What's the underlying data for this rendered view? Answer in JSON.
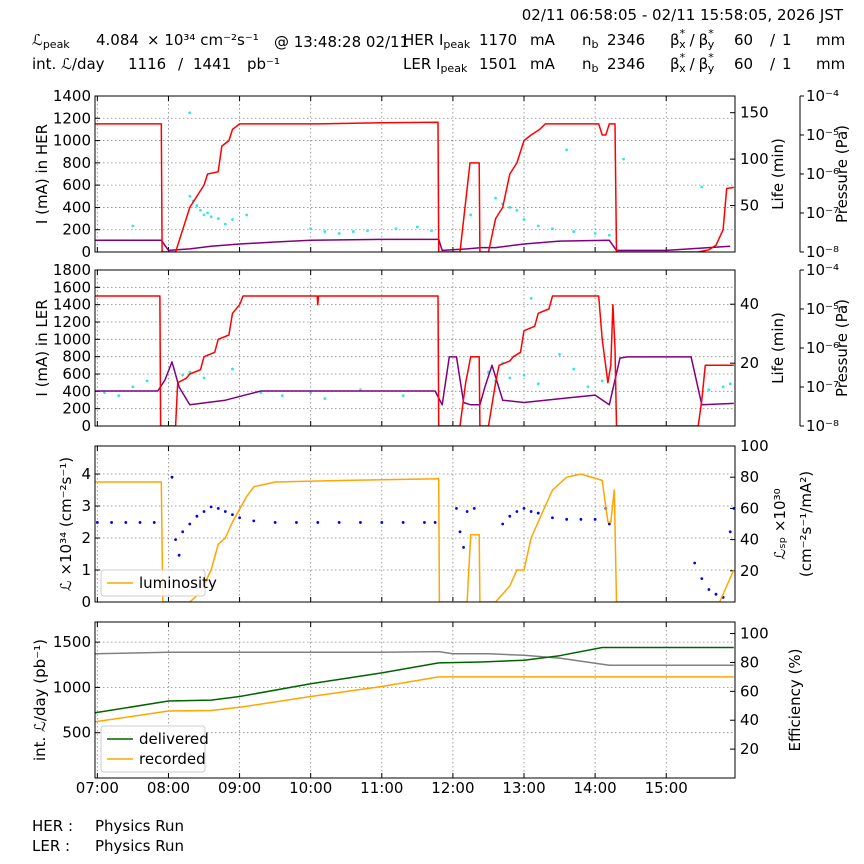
{
  "header": {
    "time_range": "02/11 06:58:05 - 02/11 15:58:05, 2026 JST",
    "lumi_symbol": "ℒ",
    "peak_sub": "peak",
    "peak_lumi": 4.084,
    "lumi_unit": "× 10³⁴ cm⁻²s⁻¹",
    "peak_time": "@ 13:48:28 02/11",
    "int_label": "int. ℒ/day",
    "int_recorded": 1116,
    "int_sep": "/",
    "int_delivered": 1441,
    "int_unit": "pb⁻¹",
    "rings": [
      {
        "label": "HER I",
        "sub": "peak",
        "current": 1170,
        "current_unit": "mA",
        "nb_label": "n",
        "nb_sub": "b",
        "nb": 2346,
        "beta_label": [
          "β",
          "*",
          "x",
          "/",
          "β",
          "*",
          "y"
        ],
        "beta_x": 60,
        "beta_sep": "/",
        "beta_y": 1,
        "beta_unit": "mm"
      },
      {
        "label": "LER I",
        "sub": "peak",
        "current": 1501,
        "current_unit": "mA",
        "nb_label": "n",
        "nb_sub": "b",
        "nb": 2346,
        "beta_label": [
          "β",
          "*",
          "x",
          "/",
          "β",
          "*",
          "y"
        ],
        "beta_x": 60,
        "beta_sep": "/",
        "beta_y": 1,
        "beta_unit": "mm"
      }
    ]
  },
  "footer": [
    {
      "ring": "HER :",
      "mode": "Physics Run"
    },
    {
      "ring": "LER :",
      "mode": "Physics Run"
    }
  ],
  "chart_data": [
    {
      "type": "line",
      "ylabel": "I (mA) in HER",
      "y2label": "Life (min)",
      "y3label": "Pressure (Pa)",
      "grid": true,
      "xlim": [
        6.967,
        15.967
      ],
      "ylim": [
        0,
        1400
      ],
      "yticks": [
        0,
        200,
        400,
        600,
        800,
        1000,
        1200,
        1400
      ],
      "y2lim": [
        0,
        168
      ],
      "y2ticks": [
        50,
        100,
        150
      ],
      "y3lim": [
        1e-08,
        0.0001
      ],
      "y3log": true,
      "y3ticks": [
        {
          "value": 0.0001,
          "label": "10⁻⁴"
        },
        {
          "value": 1e-05,
          "label": "10⁻⁵"
        },
        {
          "value": 1e-06,
          "label": "10⁻⁶"
        },
        {
          "value": 1e-07,
          "label": "10⁻⁷"
        },
        {
          "value": 1e-08,
          "label": "10⁻⁸"
        }
      ],
      "series": [
        {
          "type": "scatter",
          "axis": "y2",
          "color": "#33e6e6",
          "x": [
            8.3,
            8.35,
            8.4,
            8.45,
            8.5,
            8.6,
            8.7,
            8.8,
            8.9,
            8.55,
            9.1,
            10.0,
            10.2,
            10.4,
            10.6,
            10.8,
            11.2,
            11.5,
            11.7,
            12.25,
            12.6,
            12.7,
            12.8,
            12.9,
            13.0,
            13.2,
            13.4,
            13.7,
            14.0,
            14.2,
            13.6,
            8.3,
            7.5,
            15.5,
            14.4
          ],
          "values": [
            60,
            55,
            50,
            45,
            40,
            38,
            36,
            30,
            35,
            42,
            40,
            25,
            22,
            20,
            22,
            23,
            25,
            27,
            23,
            40,
            58,
            52,
            48,
            45,
            35,
            28,
            25,
            22,
            20,
            18,
            110,
            150,
            28,
            70,
            100
          ]
        },
        {
          "axis": "y3",
          "color": "#800080",
          "x": [
            6.97,
            7.9,
            8.0,
            8.3,
            8.6,
            9.0,
            9.5,
            10.0,
            11.0,
            11.8,
            11.85,
            12.2,
            12.4,
            12.6,
            13.0,
            13.5,
            14.2,
            14.3,
            15.0,
            15.9
          ],
          "values": [
            2e-08,
            2e-08,
            1.1e-08,
            1.2e-08,
            1.4e-08,
            1.6e-08,
            1.8e-08,
            2e-08,
            2.1e-08,
            2.1e-08,
            1.1e-08,
            1.2e-08,
            1.3e-08,
            1.3e-08,
            1.6e-08,
            1.9e-08,
            2e-08,
            1.1e-08,
            1.1e-08,
            1.4e-08
          ]
        },
        {
          "color": "#ff0000",
          "x": [
            6.97,
            7.9,
            7.91,
            8.1,
            8.2,
            8.3,
            8.35,
            8.5,
            8.55,
            8.7,
            8.75,
            8.85,
            8.9,
            9.0,
            9.3,
            10.1,
            11.0,
            11.79,
            11.8,
            12.1,
            12.17,
            12.24,
            12.37,
            12.38,
            12.5,
            12.6,
            12.7,
            12.8,
            12.9,
            13.0,
            13.1,
            13.22,
            13.3,
            14.05,
            14.1,
            14.15,
            14.2,
            14.28,
            14.3,
            15.45,
            15.6,
            15.7,
            15.8,
            15.85,
            15.95
          ],
          "values": [
            1150,
            1150,
            0,
            0,
            200,
            400,
            450,
            600,
            700,
            720,
            950,
            1000,
            1100,
            1150,
            1150,
            1150,
            1160,
            1165,
            0,
            0,
            400,
            800,
            800,
            0,
            0,
            300,
            400,
            700,
            800,
            1000,
            1050,
            1100,
            1150,
            1150,
            1050,
            1050,
            1150,
            1150,
            0,
            0,
            20,
            60,
            200,
            570,
            580
          ]
        }
      ]
    },
    {
      "type": "line",
      "ylabel": "I (mA) in LER",
      "y2label": "Life (min)",
      "y3label": "Pressure (Pa)",
      "grid": true,
      "xlim": [
        6.967,
        15.967
      ],
      "ylim": [
        0,
        1800
      ],
      "yticks": [
        0,
        200,
        400,
        600,
        800,
        1000,
        1200,
        1400,
        1600,
        1800
      ],
      "y2lim": [
        -1.3,
        51.6
      ],
      "y2ticks": [
        20,
        40
      ],
      "y3lim": [
        1e-08,
        0.0001
      ],
      "y3log": true,
      "y3ticks": [
        {
          "value": 0.0001,
          "label": "10⁻⁴"
        },
        {
          "value": 1e-05,
          "label": "10⁻⁵"
        },
        {
          "value": 1e-06,
          "label": "10⁻⁶"
        },
        {
          "value": 1e-07,
          "label": "10⁻⁷"
        },
        {
          "value": 1e-08,
          "label": "10⁻⁸"
        }
      ],
      "series": [
        {
          "type": "scatter",
          "axis": "y2",
          "color": "#33e6e6",
          "x": [
            7.1,
            7.3,
            7.5,
            7.7,
            8.2,
            8.3,
            8.5,
            8.9,
            9.3,
            9.6,
            10.0,
            10.2,
            10.7,
            11.3,
            12.5,
            12.6,
            12.7,
            12.8,
            13.0,
            13.2,
            13.5,
            13.7,
            13.9,
            14.1,
            15.6,
            15.8,
            15.9,
            13.1
          ],
          "values": [
            10,
            9,
            12,
            14,
            16,
            17,
            15,
            18,
            10,
            9,
            10,
            8,
            11,
            9,
            17,
            14,
            20,
            15,
            16,
            13,
            23,
            18,
            12,
            14,
            11,
            12,
            13,
            42
          ]
        },
        {
          "axis": "y3",
          "color": "#800080",
          "x": [
            6.97,
            7.85,
            7.95,
            8.05,
            8.15,
            8.3,
            8.8,
            9.3,
            11.75,
            11.85,
            11.95,
            12.05,
            12.15,
            12.25,
            12.38,
            12.45,
            12.55,
            12.7,
            13.0,
            13.5,
            14.0,
            14.2,
            14.35,
            14.45,
            15.35,
            15.5,
            15.95
          ],
          "values": [
            7.9e-08,
            7.9e-08,
            1.5e-07,
            4.4e-07,
            1e-07,
            3.5e-08,
            4.6e-08,
            7.9e-08,
            7.9e-08,
            3.5e-08,
            5.9e-07,
            5.9e-07,
            4e-08,
            3.5e-08,
            3.5e-08,
            1e-07,
            3.6e-07,
            4.6e-08,
            4e-08,
            5e-08,
            6.2e-08,
            3.5e-08,
            5.5e-07,
            5.9e-07,
            5.9e-07,
            3.5e-08,
            3.8e-08
          ]
        },
        {
          "color": "#ff0000",
          "x": [
            6.97,
            7.88,
            7.89,
            8.1,
            8.13,
            8.25,
            8.3,
            8.45,
            8.5,
            8.65,
            8.7,
            8.85,
            8.9,
            9.0,
            9.05,
            10.09,
            10.1,
            10.11,
            11.79,
            11.8,
            12.1,
            12.18,
            12.25,
            12.37,
            12.38,
            12.5,
            12.6,
            12.65,
            12.8,
            12.85,
            12.95,
            13.0,
            13.15,
            13.2,
            13.35,
            13.4,
            14.05,
            14.1,
            14.18,
            14.22,
            14.25,
            14.28,
            14.3,
            15.45,
            15.5,
            15.55,
            15.95
          ],
          "values": [
            1500,
            1500,
            0,
            0,
            500,
            550,
            600,
            650,
            800,
            850,
            1000,
            1050,
            1300,
            1400,
            1500,
            1500,
            1400,
            1500,
            1500,
            0,
            0,
            500,
            800,
            800,
            0,
            0,
            500,
            700,
            750,
            800,
            850,
            1100,
            1150,
            1300,
            1350,
            1500,
            1500,
            1000,
            500,
            700,
            1400,
            900,
            0,
            0,
            300,
            700,
            700
          ]
        }
      ]
    },
    {
      "type": "line",
      "ylabel": "ℒ ×10³⁴ (cm⁻²s⁻¹)",
      "y2label": [
        "ℒₛₚ ×10³⁰",
        "(cm⁻²s⁻¹/mA²)"
      ],
      "grid": true,
      "legend": "lower left",
      "xlim": [
        6.967,
        15.967
      ],
      "ylim": [
        0,
        4.875
      ],
      "yticks": [
        0,
        1,
        2,
        3,
        4
      ],
      "y2lim": [
        0,
        100
      ],
      "y2ticks": [
        20,
        40,
        60,
        80,
        100
      ],
      "series": [
        {
          "type": "scatter",
          "axis": "y2",
          "color": "#0000ff",
          "x": [
            7.0,
            7.2,
            7.4,
            7.6,
            7.8,
            8.05,
            8.1,
            8.15,
            8.2,
            8.3,
            8.4,
            8.5,
            8.6,
            8.7,
            8.8,
            8.9,
            9.0,
            9.2,
            9.5,
            9.8,
            10.1,
            10.4,
            10.7,
            11.0,
            11.3,
            11.6,
            11.75,
            12.05,
            12.1,
            12.15,
            12.2,
            12.3,
            12.7,
            12.8,
            12.9,
            13.0,
            13.1,
            13.2,
            13.4,
            13.6,
            13.8,
            14.0,
            14.15,
            14.2,
            15.4,
            15.5,
            15.6,
            15.7,
            15.8,
            15.9,
            15.95
          ],
          "values": [
            51,
            51,
            51,
            51,
            51,
            80,
            40,
            30,
            45,
            50,
            55,
            58,
            61,
            60,
            58,
            56,
            54,
            52,
            51,
            51,
            51,
            51,
            51,
            51,
            51,
            51,
            51,
            60,
            45,
            35,
            58,
            60,
            50,
            55,
            58,
            60,
            58,
            57,
            54,
            53,
            53,
            53,
            60,
            50,
            25,
            15,
            8,
            5,
            3,
            45,
            60
          ]
        },
        {
          "name": "luminosity",
          "color": "#ffa500",
          "x": [
            6.97,
            7.9,
            7.92,
            8.3,
            8.45,
            8.6,
            8.7,
            8.8,
            8.9,
            9.0,
            9.1,
            9.2,
            9.5,
            10.5,
            11.8,
            11.81,
            12.2,
            12.25,
            12.37,
            12.38,
            12.6,
            12.8,
            12.9,
            13.0,
            13.1,
            13.2,
            13.3,
            13.4,
            13.6,
            13.8,
            14.1,
            14.18,
            14.22,
            14.27,
            14.3,
            15.75,
            15.85,
            15.95
          ],
          "values": [
            3.75,
            3.75,
            0,
            0,
            0.3,
            1.0,
            1.8,
            2.0,
            2.5,
            2.9,
            3.3,
            3.6,
            3.75,
            3.8,
            3.85,
            0,
            0,
            2.1,
            2.1,
            0,
            0,
            0.5,
            1.0,
            1.0,
            2.0,
            2.5,
            3.0,
            3.5,
            3.9,
            4.0,
            3.8,
            2.5,
            2.5,
            3.5,
            0,
            0,
            0.5,
            1.0
          ]
        }
      ]
    },
    {
      "type": "line",
      "ylabel": "int. ℒ/day (pb⁻¹)",
      "y2label": "Efficiency (%)",
      "grid": true,
      "legend": "lower left",
      "xlim": [
        6.967,
        15.967
      ],
      "ylim": [
        0,
        1722
      ],
      "yticks": [
        500,
        1000,
        1500
      ],
      "y2lim": [
        0,
        108
      ],
      "y2ticks": [
        20,
        40,
        60,
        80,
        100
      ],
      "xticks": [
        {
          "value": 7,
          "label": "07:00"
        },
        {
          "value": 8,
          "label": "08:00"
        },
        {
          "value": 9,
          "label": "09:00"
        },
        {
          "value": 10,
          "label": "10:00"
        },
        {
          "value": 11,
          "label": "11:00"
        },
        {
          "value": 12,
          "label": "12:00"
        },
        {
          "value": 13,
          "label": "13:00"
        },
        {
          "value": 14,
          "label": "14:00"
        },
        {
          "value": 15,
          "label": "15:00"
        }
      ],
      "series": [
        {
          "axis": "y2",
          "color": "#808080",
          "x": [
            6.97,
            8.0,
            9.0,
            10.0,
            11.0,
            11.8,
            12.0,
            12.5,
            13.0,
            13.5,
            14.2,
            15.95
          ],
          "values": [
            86,
            87,
            87,
            87,
            87,
            87.5,
            86,
            86,
            85,
            83,
            78,
            78
          ]
        },
        {
          "name": "delivered",
          "color": "#006400",
          "x": [
            6.97,
            8.0,
            8.6,
            9.0,
            10.0,
            11.0,
            11.8,
            12.4,
            13.0,
            13.5,
            14.1,
            15.95
          ],
          "values": [
            720,
            850,
            860,
            900,
            1040,
            1160,
            1270,
            1280,
            1300,
            1350,
            1441,
            1441
          ]
        },
        {
          "name": "recorded",
          "color": "#ffa500",
          "x": [
            6.97,
            8.0,
            8.6,
            9.0,
            10.0,
            11.0,
            11.8,
            15.95
          ],
          "values": [
            620,
            740,
            745,
            780,
            900,
            1010,
            1116,
            1116
          ]
        }
      ]
    }
  ]
}
